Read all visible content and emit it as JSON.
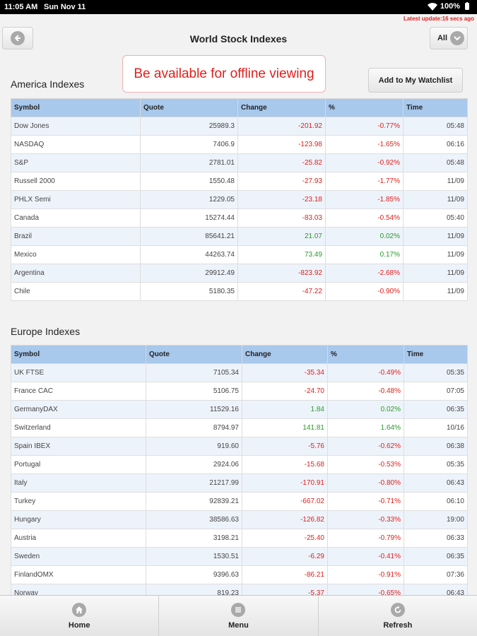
{
  "status": {
    "time": "11:05 AM",
    "date": "Sun Nov 11",
    "battery": "100%"
  },
  "last_update": "Latest update:16 secs ago",
  "header": {
    "title": "World Stock Indexes",
    "all_label": "All"
  },
  "banner": "Be available for offline viewing",
  "watchlist_label": "Add to My Watchlist",
  "columns": [
    "Symbol",
    "Quote",
    "Change",
    "%",
    "Time"
  ],
  "america": {
    "title": "America Indexes",
    "rows": [
      {
        "symbol": "Dow Jones",
        "quote": "25989.3",
        "change": "-201.92",
        "pct": "-0.77%",
        "time": "05:48",
        "dir": "neg"
      },
      {
        "symbol": "NASDAQ",
        "quote": "7406.9",
        "change": "-123.98",
        "pct": "-1.65%",
        "time": "06:16",
        "dir": "neg"
      },
      {
        "symbol": "S&P",
        "quote": "2781.01",
        "change": "-25.82",
        "pct": "-0.92%",
        "time": "05:48",
        "dir": "neg"
      },
      {
        "symbol": "Russell 2000",
        "quote": "1550.48",
        "change": "-27.93",
        "pct": "-1.77%",
        "time": "11/09",
        "dir": "neg"
      },
      {
        "symbol": "PHLX Semi",
        "quote": "1229.05",
        "change": "-23.18",
        "pct": "-1.85%",
        "time": "11/09",
        "dir": "neg"
      },
      {
        "symbol": "Canada",
        "quote": "15274.44",
        "change": "-83.03",
        "pct": "-0.54%",
        "time": "05:40",
        "dir": "neg"
      },
      {
        "symbol": "Brazil",
        "quote": "85641.21",
        "change": "21.07",
        "pct": "0.02%",
        "time": "11/09",
        "dir": "pos"
      },
      {
        "symbol": "Mexico",
        "quote": "44263.74",
        "change": "73.49",
        "pct": "0.17%",
        "time": "11/09",
        "dir": "pos"
      },
      {
        "symbol": "Argentina",
        "quote": "29912.49",
        "change": "-823.92",
        "pct": "-2.68%",
        "time": "11/09",
        "dir": "neg"
      },
      {
        "symbol": "Chile",
        "quote": "5180.35",
        "change": "-47.22",
        "pct": "-0.90%",
        "time": "11/09",
        "dir": "neg"
      }
    ]
  },
  "europe": {
    "title": "Europe Indexes",
    "rows": [
      {
        "symbol": "UK FTSE",
        "quote": "7105.34",
        "change": "-35.34",
        "pct": "-0.49%",
        "time": "05:35",
        "dir": "neg"
      },
      {
        "symbol": "France CAC",
        "quote": "5106.75",
        "change": "-24.70",
        "pct": "-0.48%",
        "time": "07:05",
        "dir": "neg"
      },
      {
        "symbol": "GermanyDAX",
        "quote": "11529.16",
        "change": "1.84",
        "pct": "0.02%",
        "time": "06:35",
        "dir": "pos"
      },
      {
        "symbol": "Switzerland",
        "quote": "8794.97",
        "change": "141.81",
        "pct": "1.64%",
        "time": "10/16",
        "dir": "pos"
      },
      {
        "symbol": "Spain IBEX",
        "quote": "919.60",
        "change": "-5.76",
        "pct": "-0.62%",
        "time": "06:38",
        "dir": "neg"
      },
      {
        "symbol": "Portugal",
        "quote": "2924.06",
        "change": "-15.68",
        "pct": "-0.53%",
        "time": "05:35",
        "dir": "neg"
      },
      {
        "symbol": "Italy",
        "quote": "21217.99",
        "change": "-170.91",
        "pct": "-0.80%",
        "time": "06:43",
        "dir": "neg"
      },
      {
        "symbol": "Turkey",
        "quote": "92839.21",
        "change": "-667.02",
        "pct": "-0.71%",
        "time": "06:10",
        "dir": "neg"
      },
      {
        "symbol": "Hungary",
        "quote": "38586.63",
        "change": "-126.82",
        "pct": "-0.33%",
        "time": "19:00",
        "dir": "neg"
      },
      {
        "symbol": "Austria",
        "quote": "3198.21",
        "change": "-25.40",
        "pct": "-0.79%",
        "time": "06:33",
        "dir": "neg"
      },
      {
        "symbol": "Sweden",
        "quote": "1530.51",
        "change": "-6.29",
        "pct": "-0.41%",
        "time": "06:35",
        "dir": "neg"
      },
      {
        "symbol": "FinlandOMX",
        "quote": "9396.63",
        "change": "-86.21",
        "pct": "-0.91%",
        "time": "07:36",
        "dir": "neg"
      },
      {
        "symbol": "Norway",
        "quote": "819.23",
        "change": "-5.37",
        "pct": "-0.65%",
        "time": "06:43",
        "dir": "neg"
      }
    ]
  },
  "nav": {
    "home": "Home",
    "menu": "Menu",
    "refresh": "Refresh"
  },
  "colors": {
    "negative": "#e0201c",
    "positive": "#2a9a2a",
    "header_row": "#a8c8ec"
  },
  "icons": {
    "back": "arrow-left-circle-icon",
    "all": "chevron-down-circle-icon",
    "home": "home-icon",
    "menu": "menu-icon",
    "refresh": "refresh-icon"
  }
}
